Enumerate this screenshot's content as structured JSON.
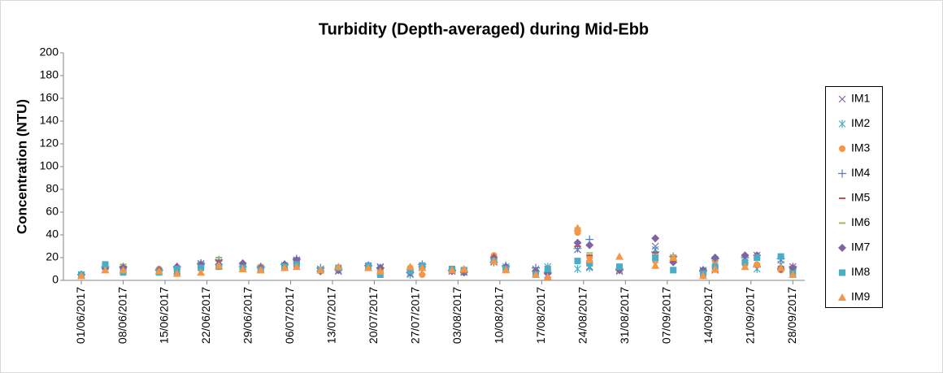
{
  "chart_data": {
    "type": "scatter",
    "title": "Turbidity (Depth-averaged) during Mid-Ebb",
    "y_label": "Concentration (NTU)",
    "x": [
      "01/06/2017",
      "05/06/2017",
      "08/06/2017",
      "14/06/2017",
      "17/06/2017",
      "21/06/2017",
      "24/06/2017",
      "28/06/2017",
      "01/07/2017",
      "05/07/2017",
      "07/07/2017",
      "11/07/2017",
      "14/07/2017",
      "19/07/2017",
      "21/07/2017",
      "26/07/2017",
      "28/07/2017",
      "02/08/2017",
      "04/08/2017",
      "09/08/2017",
      "11/08/2017",
      "16/08/2017",
      "18/08/2017",
      "23/08/2017",
      "25/08/2017",
      "30/08/2017",
      "05/09/2017",
      "08/09/2017",
      "13/09/2017",
      "15/09/2017",
      "20/09/2017",
      "22/09/2017",
      "26/09/2017",
      "28/09/2017"
    ],
    "series": [
      {
        "name": "IM1",
        "color": "#8064a2",
        "marker": "x",
        "values": [
          4,
          10,
          9,
          8,
          8,
          14,
          15,
          12,
          10,
          12,
          18,
          10,
          8,
          12,
          12,
          6,
          12,
          8,
          7,
          16,
          10,
          9,
          5,
          27,
          12,
          8,
          30,
          18,
          8,
          9,
          20,
          22,
          18,
          12
        ]
      },
      {
        "name": "IM2",
        "color": "#4bacc6",
        "marker": "star",
        "values": [
          5,
          12,
          10,
          8,
          9,
          15,
          16,
          11,
          11,
          13,
          17,
          9,
          9,
          12,
          11,
          5,
          8,
          9,
          8,
          18,
          12,
          10,
          12,
          10,
          11,
          9,
          27,
          20,
          9,
          10,
          18,
          10,
          14,
          10
        ]
      },
      {
        "name": "IM3",
        "color": "#f79646",
        "marker": "circle",
        "values": [
          4,
          11,
          11,
          10,
          11,
          14,
          12,
          14,
          12,
          13,
          16,
          8,
          11,
          12,
          10,
          11,
          5,
          9,
          7,
          22,
          10,
          6,
          8,
          42,
          20,
          9,
          17,
          20,
          7,
          17,
          14,
          14,
          9,
          9
        ]
      },
      {
        "name": "IM4",
        "color": "#4f81bd",
        "marker": "plus",
        "values": [
          5,
          12,
          12,
          9,
          12,
          15,
          18,
          12,
          12,
          14,
          19,
          11,
          10,
          13,
          11,
          7,
          14,
          9,
          8,
          16,
          13,
          11,
          7,
          28,
          36,
          10,
          25,
          21,
          8,
          19,
          20,
          12,
          19,
          12
        ]
      },
      {
        "name": "IM5",
        "color": "#c0504d",
        "marker": "dash",
        "values": [
          5,
          10,
          12,
          9,
          10,
          14,
          17,
          13,
          11,
          13,
          17,
          10,
          11,
          12,
          10,
          9,
          15,
          8,
          8,
          18,
          12,
          8,
          6,
          30,
          22,
          11,
          24,
          18,
          9,
          18,
          21,
          13,
          12,
          10
        ]
      },
      {
        "name": "IM6",
        "color": "#9bbb59",
        "marker": "dash",
        "values": [
          5,
          11,
          14,
          10,
          11,
          15,
          20,
          13,
          12,
          13,
          17,
          10,
          10,
          13,
          10,
          10,
          13,
          9,
          8,
          20,
          11,
          9,
          7,
          46,
          24,
          9,
          22,
          22,
          9,
          18,
          20,
          12,
          11,
          9
        ]
      },
      {
        "name": "IM7",
        "color": "#8064a2",
        "marker": "diamond",
        "values": [
          5,
          11,
          11,
          9,
          12,
          14,
          14,
          15,
          11,
          14,
          18,
          8,
          9,
          13,
          11,
          7,
          12,
          8,
          7,
          20,
          12,
          8,
          6,
          33,
          31,
          9,
          37,
          16,
          9,
          20,
          22,
          22,
          10,
          11
        ]
      },
      {
        "name": "IM8",
        "color": "#4bacc6",
        "marker": "square",
        "values": [
          5,
          14,
          7,
          7,
          10,
          11,
          12,
          11,
          9,
          12,
          14,
          9,
          11,
          13,
          5,
          8,
          13,
          10,
          9,
          17,
          10,
          5,
          10,
          17,
          15,
          12,
          20,
          9,
          6,
          12,
          16,
          20,
          21,
          6
        ]
      },
      {
        "name": "IM9",
        "color": "#f79646",
        "marker": "triangle",
        "values": [
          4,
          9,
          9,
          8,
          6,
          7,
          13,
          10,
          9,
          11,
          12,
          9,
          12,
          11,
          8,
          12,
          11,
          9,
          10,
          17,
          9,
          5,
          3,
          46,
          18,
          21,
          13,
          20,
          4,
          10,
          12,
          14,
          11,
          5
        ]
      }
    ],
    "xlim": [
      "29/05/2017",
      "30/09/2017"
    ],
    "xticks": [
      "01/06/2017",
      "08/06/2017",
      "15/06/2017",
      "22/06/2017",
      "29/06/2017",
      "06/07/2017",
      "13/07/2017",
      "20/07/2017",
      "27/07/2017",
      "03/08/2017",
      "10/08/2017",
      "17/08/2017",
      "24/08/2017",
      "31/08/2017",
      "07/09/2017",
      "14/09/2017",
      "21/09/2017",
      "28/09/2017"
    ],
    "ylim": [
      0,
      200
    ],
    "yticks": [
      0,
      20,
      40,
      60,
      80,
      100,
      120,
      140,
      160,
      180,
      200
    ],
    "grid": false,
    "legend": "right"
  }
}
